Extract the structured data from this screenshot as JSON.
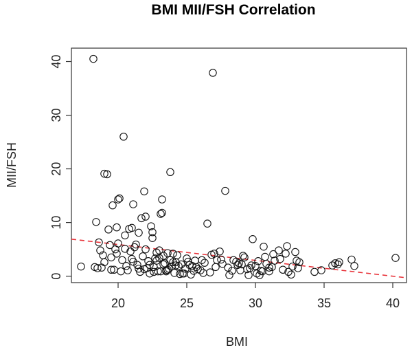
{
  "chart_data": {
    "type": "scatter",
    "title": "BMI MII/FSH Correlation",
    "xlabel": "BMI",
    "ylabel": "MII/FSH",
    "xlim": [
      16.6,
      41.0
    ],
    "ylim": [
      -1.2,
      42.5
    ],
    "xticks": [
      20,
      25,
      30,
      35,
      40
    ],
    "yticks": [
      0,
      10,
      20,
      30,
      40
    ],
    "grid": false,
    "trend_line": {
      "x0": 16.6,
      "y0": 6.9,
      "x1": 41.0,
      "y1": -0.3,
      "color": "#e8333a"
    },
    "series": [
      {
        "name": "observations",
        "x": [
          17.3,
          18.2,
          18.5,
          18.4,
          18.6,
          18.9,
          19.0,
          19.2,
          19.3,
          19.5,
          19.6,
          19.8,
          19.9,
          20.0,
          20.1,
          20.2,
          20.4,
          20.5,
          20.7,
          20.8,
          21.0,
          21.1,
          21.3,
          21.5,
          21.7,
          21.9,
          22.0,
          22.3,
          22.4,
          22.5,
          22.6,
          22.8,
          23.0,
          23.1,
          23.2,
          23.2,
          23.3,
          23.5,
          23.7,
          23.8,
          24.0,
          24.2,
          24.4,
          24.7,
          25.0,
          25.2,
          25.5,
          25.8,
          26.1,
          26.5,
          26.9,
          27.1,
          27.4,
          27.8,
          28.1,
          28.4,
          28.7,
          28.9,
          29.2,
          29.5,
          29.8,
          30.0,
          30.3,
          30.6,
          31.0,
          31.3,
          31.7,
          32.0,
          32.3,
          32.6,
          32.9,
          33.2,
          34.3,
          34.8,
          35.6,
          36.1,
          37.0,
          37.2,
          40.2,
          19.0,
          19.4,
          19.7,
          20.3,
          20.6,
          20.9,
          21.2,
          21.4,
          21.6,
          21.8,
          22.1,
          22.2,
          22.5,
          22.7,
          22.9,
          23.4,
          23.6,
          23.9,
          24.1,
          24.3,
          24.6,
          24.9,
          25.3,
          25.6,
          26.0,
          26.3,
          26.7,
          27.0,
          27.6,
          28.0,
          28.6,
          29.1,
          29.4,
          29.7,
          30.2,
          30.5,
          30.8,
          31.2,
          31.8,
          32.4,
          33.0,
          35.8,
          18.7,
          19.9,
          20.5,
          21.0,
          21.5,
          22.0,
          22.3,
          22.8,
          23.1,
          23.5,
          23.8,
          24.2,
          24.5,
          25.1,
          25.4,
          26.2,
          26.8,
          27.5,
          28.3,
          29.0,
          29.6,
          30.1,
          30.7,
          31.4,
          32.7,
          36.0,
          18.3,
          18.8,
          19.5,
          20.0,
          21.1,
          21.9,
          22.6,
          23.0,
          23.3,
          23.6,
          24.0,
          24.8,
          25.7,
          27.2,
          28.8,
          30.4,
          31.0,
          32.2,
          33.1
        ],
        "y": [
          1.8,
          40.5,
          1.5,
          10.1,
          6.3,
          3.9,
          19.1,
          19.0,
          8.7,
          1.2,
          13.2,
          5.0,
          9.1,
          14.3,
          14.5,
          0.9,
          26.0,
          5.1,
          1.1,
          8.8,
          9.0,
          13.4,
          5.9,
          8.1,
          10.8,
          15.8,
          11.1,
          0.5,
          9.3,
          8.2,
          1.7,
          2.9,
          3.4,
          11.6,
          11.8,
          14.3,
          2.2,
          0.9,
          1.4,
          19.4,
          4.2,
          2.6,
          1.9,
          0.5,
          3.3,
          2.1,
          1.0,
          1.3,
          3.0,
          9.8,
          37.9,
          1.7,
          4.6,
          15.9,
          0.2,
          3.0,
          2.1,
          1.1,
          3.5,
          0.2,
          6.9,
          1.9,
          0.2,
          5.5,
          1.6,
          4.1,
          4.8,
          1.2,
          5.6,
          0.3,
          4.5,
          2.6,
          0.8,
          1.1,
          2.0,
          2.6,
          3.1,
          1.9,
          3.4,
          2.6,
          5.8,
          1.2,
          3.0,
          1.9,
          4.6,
          5.4,
          2.1,
          0.8,
          3.7,
          1.5,
          2.8,
          7.1,
          3.3,
          0.9,
          2.4,
          4.3,
          1.8,
          0.6,
          3.9,
          2.2,
          1.4,
          0.3,
          2.9,
          1.1,
          2.5,
          0.7,
          4.2,
          2.3,
          1.6,
          2.7,
          3.8,
          1.3,
          2.0,
          2.8,
          0.9,
          2.3,
          1.7,
          3.2,
          0.8,
          2.9,
          2.4,
          4.8,
          4.2,
          7.6,
          3.2,
          1.4,
          5.0,
          2.1,
          4.4,
          0.9,
          1.1,
          3.0,
          2.0,
          0.4,
          2.7,
          1.9,
          0.6,
          4.0,
          3.1,
          1.0,
          2.2,
          1.5,
          0.5,
          3.6,
          2.9,
          1.8,
          2.2,
          1.7,
          1.6,
          3.5,
          6.1,
          2.7,
          1.3,
          0.8,
          4.8,
          3.8,
          1.2,
          2.6,
          0.5,
          1.7,
          3.0,
          2.4,
          1.0,
          0.9,
          4.2,
          1.5
        ]
      }
    ]
  }
}
